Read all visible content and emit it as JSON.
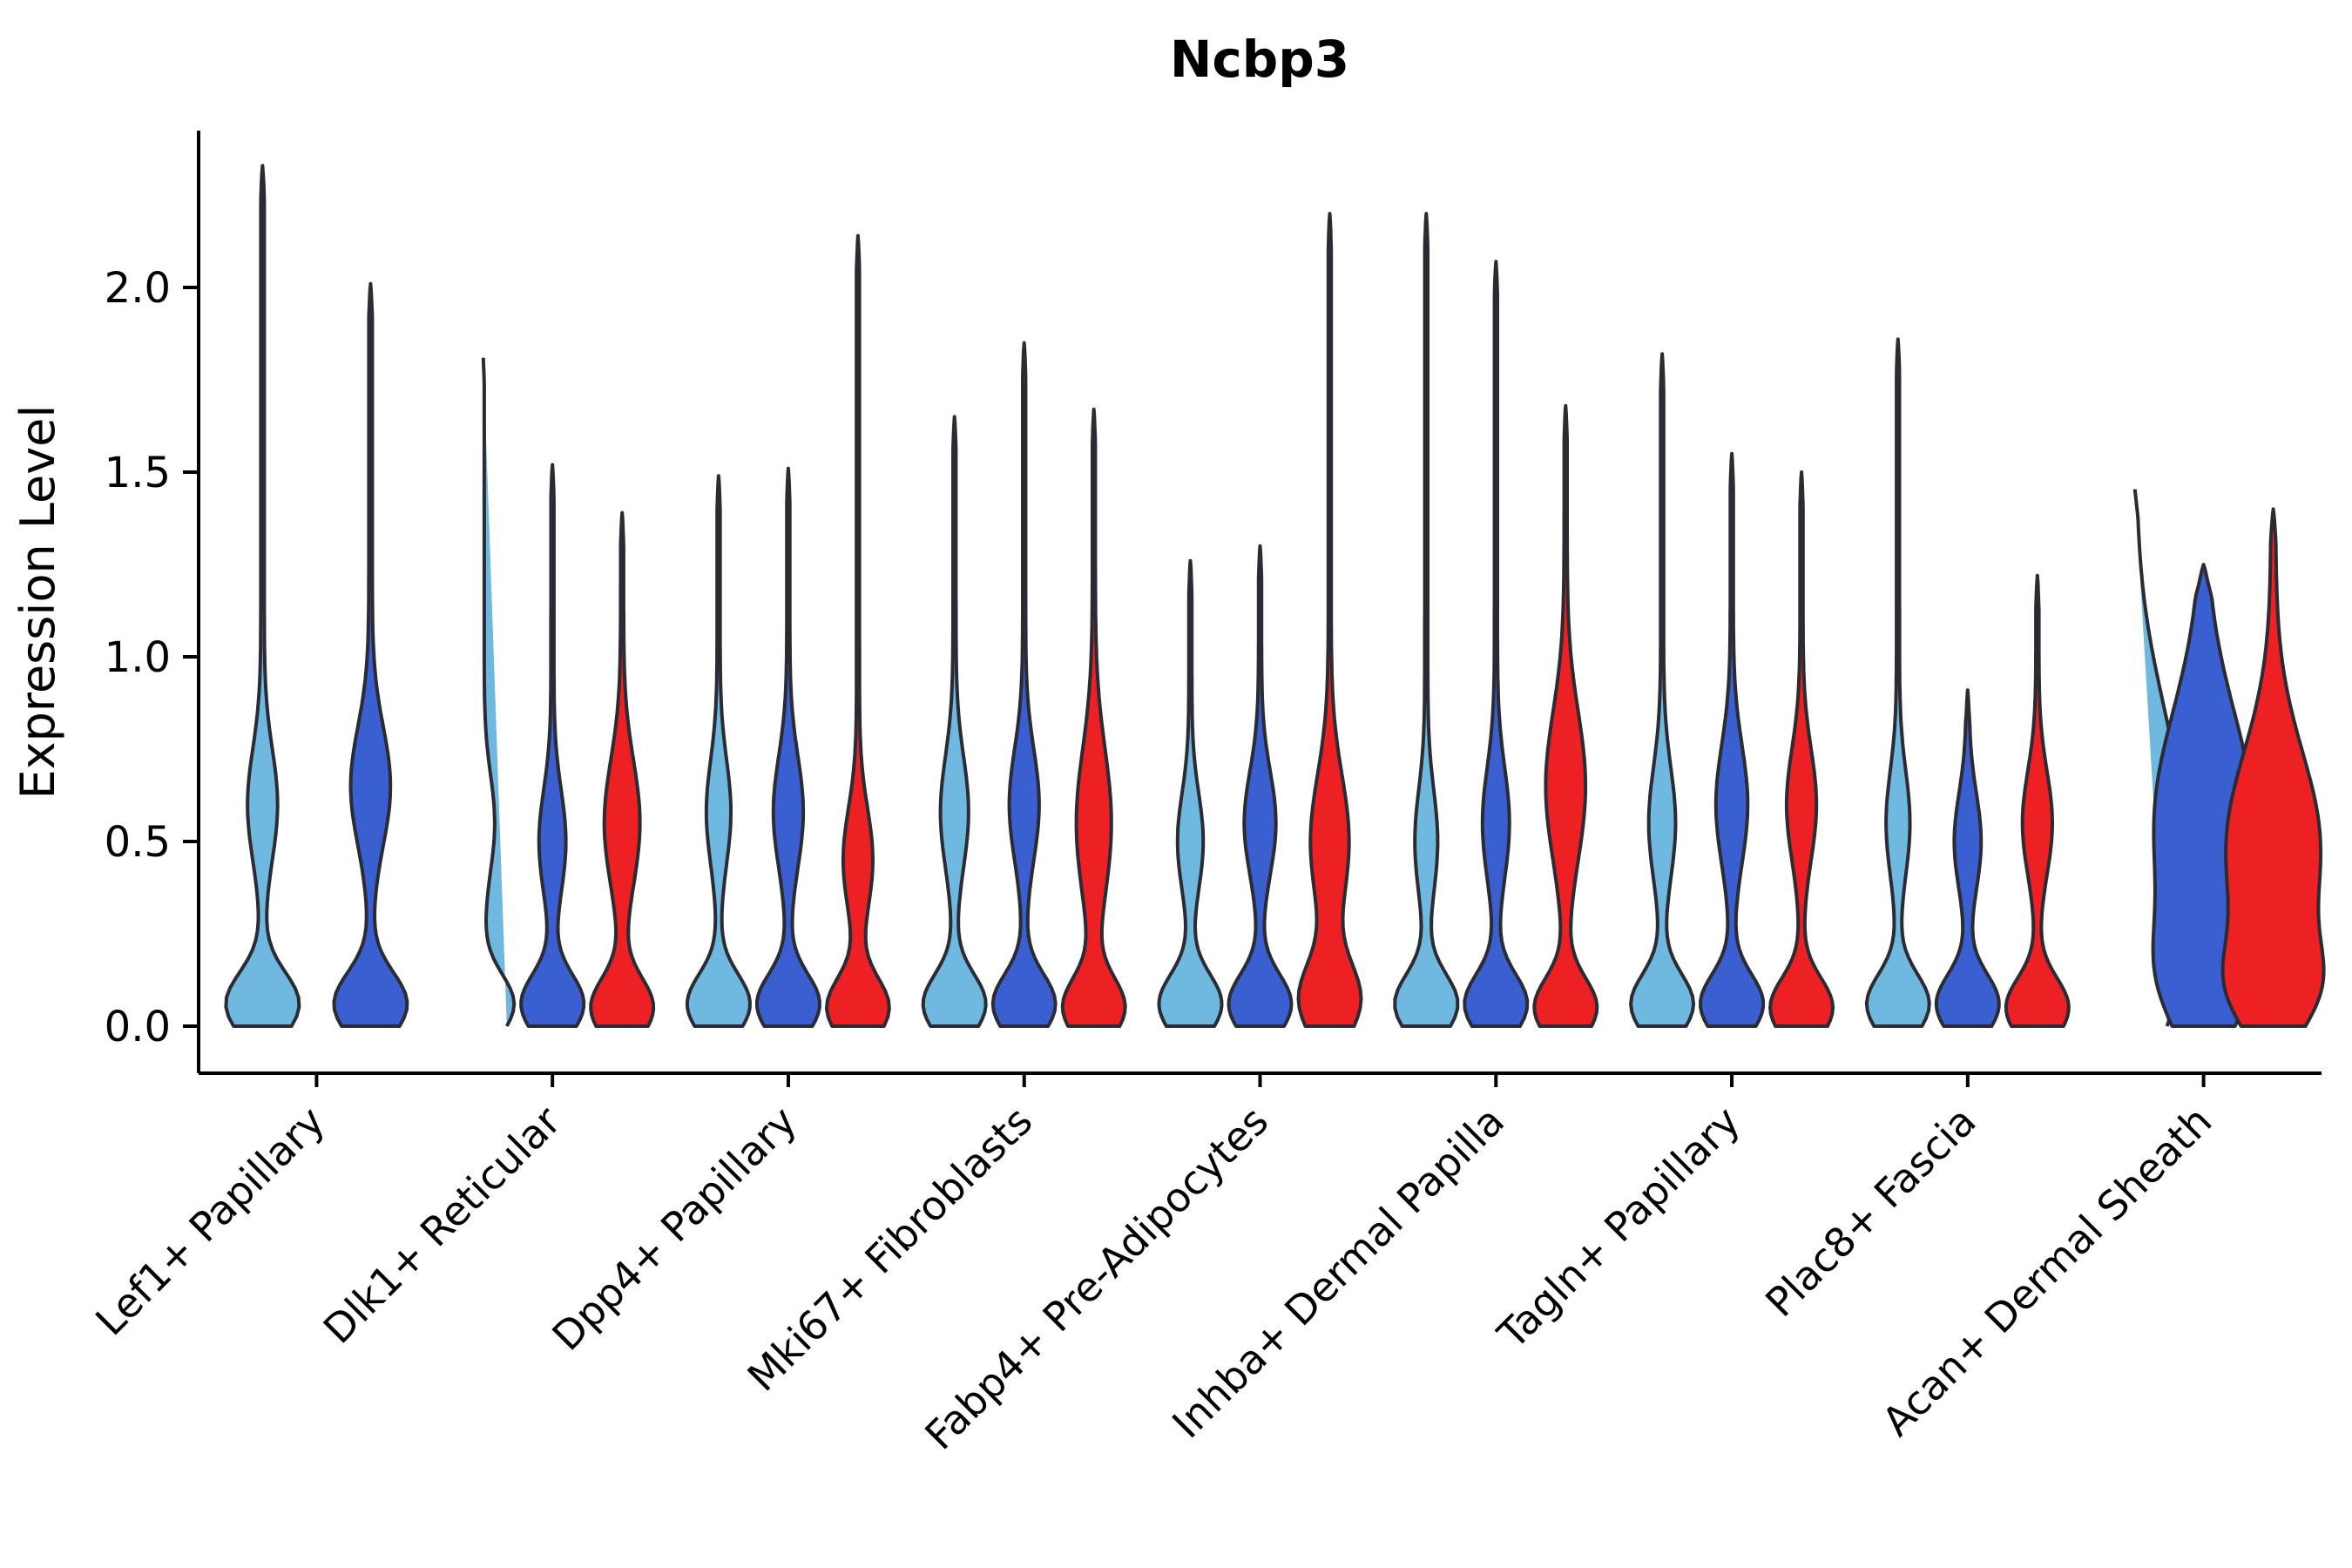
{
  "title": "Ncbp3",
  "chart_data": {
    "type": "violin",
    "title": "Ncbp3",
    "xlabel": "",
    "ylabel": "Expression Level",
    "yticks": [
      0.0,
      0.5,
      1.0,
      1.5,
      2.0
    ],
    "ylim": [
      -0.08,
      2.45
    ],
    "legend": "none",
    "grid": false,
    "outline_color": "#2b2b33",
    "axis_color": "#000000",
    "series_colors": {
      "skyblue": "#6fb9e1",
      "royalblue": "#3a5fd0",
      "red": "#ed2024"
    },
    "categories": [
      "Lef1+ Papillary",
      "Dlk1+ Reticular",
      "Dpp4+ Papillary",
      "Mki67+ Fibroblasts",
      "Fabp4+ Pre-Adipocytes",
      "Inhba+ Dermal Papilla",
      "Tagln+ Papillary",
      "Plac8+ Fascia",
      "Acan+ Dermal Sheath"
    ],
    "groups": [
      {
        "label": "Lef1+ Papillary",
        "violins": [
          {
            "color": "skyblue",
            "max": 2.33,
            "base": [
              0.06,
              0.085,
              1.0
            ],
            "bulge": [
              0.6,
              0.15,
              0.38
            ]
          },
          {
            "color": "royalblue",
            "max": 2.01,
            "base": [
              0.06,
              0.085,
              1.0
            ],
            "bulge": [
              0.65,
              0.16,
              0.52
            ]
          }
        ]
      },
      {
        "label": "Dlk1+ Reticular",
        "violins": [
          {
            "color": "skyblue",
            "max": 1.83,
            "base": [
              0.06,
              0.08,
              1.0
            ],
            "bulge": [
              0.55,
              0.13,
              0.35
            ]
          },
          {
            "color": "royalblue",
            "max": 1.52,
            "base": [
              0.06,
              0.08,
              1.0
            ],
            "bulge": [
              0.5,
              0.14,
              0.4
            ]
          },
          {
            "color": "red",
            "max": 1.39,
            "base": [
              0.05,
              0.08,
              1.0
            ],
            "bulge": [
              0.55,
              0.17,
              0.55
            ]
          }
        ]
      },
      {
        "label": "Dpp4+ Papillary",
        "violins": [
          {
            "color": "skyblue",
            "max": 1.49,
            "base": [
              0.06,
              0.08,
              1.0
            ],
            "bulge": [
              0.58,
              0.14,
              0.36
            ]
          },
          {
            "color": "royalblue",
            "max": 1.51,
            "base": [
              0.06,
              0.08,
              1.0
            ],
            "bulge": [
              0.58,
              0.15,
              0.45
            ]
          },
          {
            "color": "red",
            "max": 2.14,
            "base": [
              0.05,
              0.08,
              1.0
            ],
            "bulge": [
              0.45,
              0.14,
              0.45
            ]
          }
        ]
      },
      {
        "label": "Mki67+ Fibroblasts",
        "violins": [
          {
            "color": "skyblue",
            "max": 1.65,
            "base": [
              0.06,
              0.08,
              1.0
            ],
            "bulge": [
              0.58,
              0.15,
              0.42
            ]
          },
          {
            "color": "royalblue",
            "max": 1.85,
            "base": [
              0.06,
              0.08,
              1.0
            ],
            "bulge": [
              0.6,
              0.15,
              0.45
            ]
          },
          {
            "color": "red",
            "max": 1.67,
            "base": [
              0.05,
              0.08,
              1.0
            ],
            "bulge": [
              0.55,
              0.2,
              0.55
            ]
          }
        ]
      },
      {
        "label": "Fabp4+ Pre-Adipocytes",
        "violins": [
          {
            "color": "skyblue",
            "max": 1.26,
            "base": [
              0.06,
              0.08,
              1.0
            ],
            "bulge": [
              0.5,
              0.13,
              0.38
            ]
          },
          {
            "color": "royalblue",
            "max": 1.3,
            "base": [
              0.06,
              0.08,
              1.0
            ],
            "bulge": [
              0.55,
              0.14,
              0.48
            ]
          },
          {
            "color": "red",
            "max": 2.2,
            "base": [
              0.07,
              0.1,
              1.0
            ],
            "bulge": [
              0.5,
              0.18,
              0.62
            ]
          }
        ]
      },
      {
        "label": "Inhba+ Dermal Papilla",
        "violins": [
          {
            "color": "skyblue",
            "max": 2.2,
            "base": [
              0.06,
              0.08,
              1.0
            ],
            "bulge": [
              0.5,
              0.14,
              0.33
            ]
          },
          {
            "color": "royalblue",
            "max": 2.07,
            "base": [
              0.06,
              0.08,
              1.0
            ],
            "bulge": [
              0.55,
              0.15,
              0.4
            ]
          },
          {
            "color": "red",
            "max": 1.68,
            "base": [
              0.05,
              0.08,
              1.0
            ],
            "bulge": [
              0.65,
              0.2,
              0.62
            ]
          }
        ]
      },
      {
        "label": "Tagln+ Papillary",
        "violins": [
          {
            "color": "skyblue",
            "max": 1.82,
            "base": [
              0.06,
              0.08,
              1.0
            ],
            "bulge": [
              0.55,
              0.15,
              0.4
            ]
          },
          {
            "color": "royalblue",
            "max": 1.55,
            "base": [
              0.06,
              0.08,
              1.0
            ],
            "bulge": [
              0.6,
              0.16,
              0.48
            ]
          },
          {
            "color": "red",
            "max": 1.5,
            "base": [
              0.05,
              0.08,
              1.0
            ],
            "bulge": [
              0.6,
              0.15,
              0.45
            ]
          }
        ]
      },
      {
        "label": "Plac8+ Fascia",
        "violins": [
          {
            "color": "skyblue",
            "max": 1.86,
            "base": [
              0.06,
              0.08,
              1.0
            ],
            "bulge": [
              0.55,
              0.14,
              0.35
            ]
          },
          {
            "color": "royalblue",
            "max": 0.91,
            "base": [
              0.06,
              0.08,
              1.0
            ],
            "bulge": [
              0.5,
              0.13,
              0.4
            ]
          },
          {
            "color": "red",
            "max": 1.22,
            "base": [
              0.05,
              0.08,
              1.0
            ],
            "bulge": [
              0.55,
              0.14,
              0.45
            ]
          }
        ]
      },
      {
        "label": "Acan+ Dermal Sheath",
        "wide": true,
        "violins": [
          {
            "color": "skyblue",
            "max": 1.47,
            "base": [
              0.12,
              0.16,
              0.6
            ],
            "bulge": [
              0.55,
              0.33,
              1.0
            ]
          },
          {
            "color": "royalblue",
            "max": 1.25,
            "base": [
              0.12,
              0.15,
              0.6
            ],
            "bulge": [
              0.55,
              0.3,
              1.0
            ]
          },
          {
            "color": "red",
            "max": 1.4,
            "base": [
              0.1,
              0.12,
              0.65
            ],
            "bulge": [
              0.48,
              0.26,
              0.95
            ]
          }
        ]
      }
    ]
  }
}
